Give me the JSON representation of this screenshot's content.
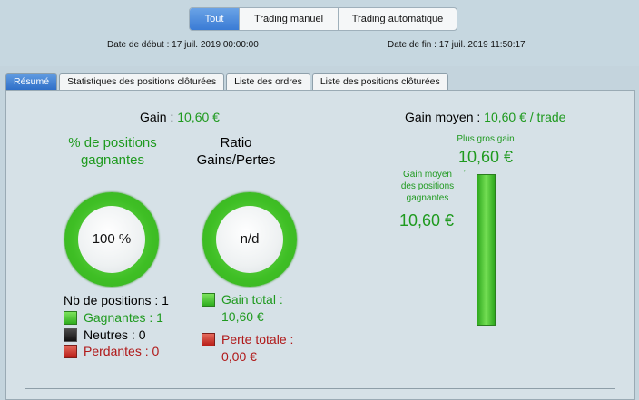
{
  "filters": {
    "all": "Tout",
    "manual": "Trading manuel",
    "auto": "Trading automatique"
  },
  "dates": {
    "start": "Date de début : 17 juil. 2019 00:00:00",
    "end": "Date de fin : 17 juil. 2019 11:50:17"
  },
  "tabs": [
    "Résumé",
    "Statistiques des positions clôturées",
    "Liste des ordres",
    "Liste des positions clôturées"
  ],
  "summary": {
    "gain_label": "Gain :",
    "gain_value": "10,60 €",
    "win_pct_title": "% de positions gagnantes",
    "win_pct_value": "100 %",
    "ratio_title_1": "Ratio",
    "ratio_title_2": "Gains/Pertes",
    "ratio_value": "n/d",
    "positions_count": "Nb de positions : 1",
    "winners": "Gagnantes : 1",
    "neutral": "Neutres : 0",
    "losers": "Perdantes : 0",
    "total_gain_label": "Gain total :",
    "total_gain_value": "10,60 €",
    "total_loss_label": "Perte totale :",
    "total_loss_value": "0,00 €"
  },
  "right": {
    "avg_gain_label": "Gain moyen :",
    "avg_gain_value": "10,60 € / trade",
    "biggest_gain_label": "Plus gros gain",
    "biggest_gain_value": "10,60 €",
    "avg_winning_label_1": "Gain moyen",
    "avg_winning_label_2": "des positions",
    "avg_winning_label_3": "gagnantes",
    "avg_winning_value": "10,60 €"
  },
  "colors": {
    "green": "#1f9a1f",
    "red": "#b01818",
    "accent": "#3a7bd5"
  },
  "icons": {
    "arrow": "arrow-right-icon"
  }
}
